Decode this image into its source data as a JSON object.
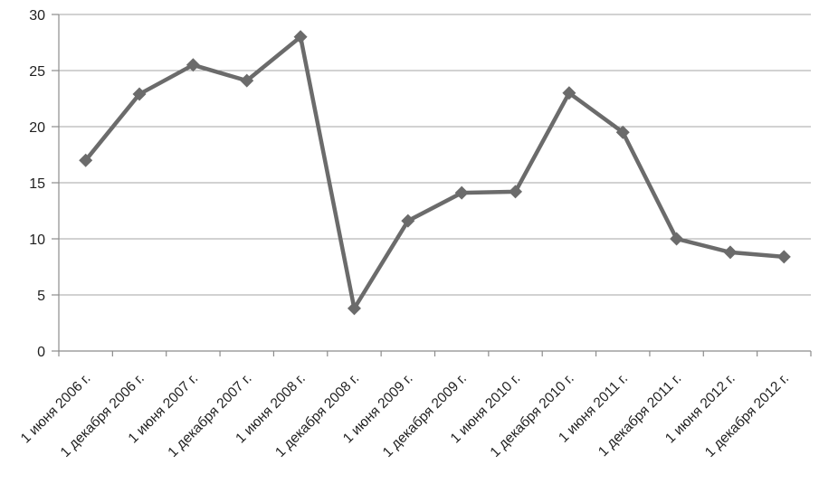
{
  "chart_data": {
    "type": "line",
    "title": "",
    "xlabel": "",
    "ylabel": "",
    "categories": [
      "1 июня 2006 г.",
      "1 декабря 2006 г.",
      "1 июня 2007 г.",
      "1 декабря 2007 г.",
      "1 июня 2008 г.",
      "1 декабря 2008 г.",
      "1 июня 2009 г.",
      "1 декабря 2009 г.",
      "1 июня 2010 г.",
      "1 декабря 2010 г.",
      "1 июня 2011 г.",
      "1 декабря 2011 г.",
      "1 июня 2012 г.",
      "1 декабря 2012 г."
    ],
    "series": [
      {
        "name": "series-1",
        "values": [
          17.0,
          22.9,
          25.5,
          24.1,
          28.0,
          3.8,
          11.6,
          14.1,
          14.2,
          23.0,
          19.5,
          10.0,
          8.8,
          8.4
        ]
      }
    ],
    "ylim": [
      0,
      30
    ],
    "yticks": [
      0,
      5,
      10,
      15,
      20,
      25,
      30
    ],
    "grid": true,
    "legend": false,
    "marker": "diamond",
    "x_label_rotation_deg": 45,
    "colors": {
      "line": "#6b6b6b",
      "marker": "#6b6b6b",
      "gridline": "#a6a6a6",
      "axis": "#8c8c8c",
      "text": "#1f1f1f",
      "background": "#ffffff"
    }
  }
}
